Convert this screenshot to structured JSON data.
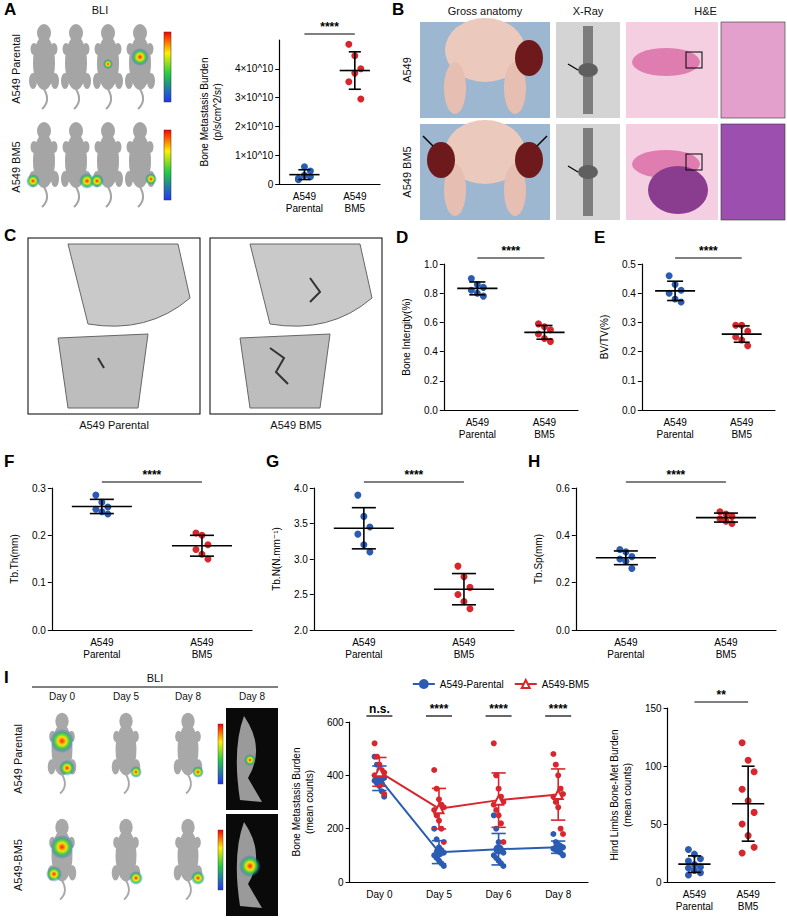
{
  "chart_data": [
    {
      "type": "scatter",
      "y_label": "Bone Metastasis Burden (p/s/cm^2/sr)",
      "categories": [
        "A549 Parental",
        "A549 BM5"
      ],
      "colors": [
        "#2b5cb4",
        "#d9262c"
      ],
      "values": [
        [
          1500000000,
          3000000000,
          4500000000,
          2000000000,
          6000000000,
          2500000000
        ],
        [
          48500000000,
          44500000000,
          40000000000,
          35500000000,
          38500000000,
          29500000000
        ]
      ],
      "mean": [
        3250000000,
        39400000000
      ],
      "sd": [
        1700000000,
        6500000000
      ],
      "ylim": [
        0,
        50000000000
      ],
      "yticks": [
        0,
        {
          "value": 10000000000,
          "label": "1×10^10"
        },
        {
          "value": 20000000000,
          "label": "2×10^10"
        },
        {
          "value": 30000000000,
          "label": "3×10^10"
        },
        {
          "value": 40000000000,
          "label": "4×10^10"
        }
      ],
      "grid": false,
      "annotations": [
        "****"
      ]
    },
    {
      "panel": "D",
      "type": "scatter",
      "y_label": "Bone Intergity(%)",
      "categories": [
        "A549 Parental",
        "A549 BM5"
      ],
      "colors": [
        "#2b5cb4",
        "#d9262c"
      ],
      "values": [
        [
          0.9,
          0.86,
          0.84,
          0.82,
          0.8,
          0.78
        ],
        [
          0.59,
          0.57,
          0.55,
          0.52,
          0.49,
          0.47
        ]
      ],
      "mean": [
        0.833,
        0.532
      ],
      "sd": [
        0.044,
        0.047
      ],
      "ylim": [
        0,
        1
      ],
      "yticks": [
        {
          "value": 0,
          "label": "0.0"
        },
        0.2,
        0.4,
        0.6,
        0.8,
        {
          "value": 1,
          "label": "1.0"
        }
      ],
      "grid": false,
      "annotations": [
        "****"
      ]
    },
    {
      "panel": "E",
      "type": "scatter",
      "y_label": "BV/TV(%)",
      "categories": [
        "A549 Parental",
        "A549 BM5"
      ],
      "colors": [
        "#2b5cb4",
        "#d9262c"
      ],
      "values": [
        [
          0.46,
          0.43,
          0.41,
          0.4,
          0.38,
          0.37
        ],
        [
          0.29,
          0.29,
          0.27,
          0.25,
          0.24,
          0.22
        ]
      ],
      "mean": [
        0.408,
        0.26
      ],
      "sd": [
        0.033,
        0.028
      ],
      "ylim": [
        0,
        0.5
      ],
      "yticks": [
        {
          "value": 0,
          "label": "0.0"
        },
        0.1,
        0.2,
        0.3,
        0.4,
        0.5
      ],
      "grid": false,
      "annotations": [
        "****"
      ]
    },
    {
      "panel": "F",
      "type": "scatter",
      "y_label": "Tb.Th(mm)",
      "categories": [
        "A549 Parental",
        "A549 BM5"
      ],
      "colors": [
        "#2b5cb4",
        "#d9262c"
      ],
      "values": [
        [
          0.285,
          0.27,
          0.26,
          0.255,
          0.25,
          0.245
        ],
        [
          0.205,
          0.2,
          0.18,
          0.17,
          0.16,
          0.15
        ]
      ],
      "mean": [
        0.261,
        0.178
      ],
      "sd": [
        0.015,
        0.022
      ],
      "ylim": [
        0,
        0.3
      ],
      "yticks": [
        {
          "value": 0,
          "label": "0.0"
        },
        0.1,
        0.2,
        0.3
      ],
      "grid": false,
      "annotations": [
        "****"
      ]
    },
    {
      "panel": "G",
      "type": "scatter",
      "y_label": "Tb.N(N.mm⁻¹)",
      "categories": [
        "A549 Parental",
        "A549 BM5"
      ],
      "colors": [
        "#2b5cb4",
        "#d9262c"
      ],
      "values": [
        [
          3.9,
          3.6,
          3.45,
          3.35,
          3.2,
          3.1
        ],
        [
          2.9,
          2.75,
          2.6,
          2.5,
          2.4,
          2.3
        ]
      ],
      "mean": [
        3.433,
        2.575
      ],
      "sd": [
        0.29,
        0.22
      ],
      "ylim": [
        2,
        4
      ],
      "yticks": [
        {
          "value": 2,
          "label": "2.0"
        },
        2.5,
        {
          "value": 3,
          "label": "3.0"
        },
        3.5,
        {
          "value": 4,
          "label": "4.0"
        }
      ],
      "grid": false,
      "annotations": [
        "****"
      ]
    },
    {
      "panel": "H",
      "type": "scatter",
      "y_label": "Tb.Sp(mm)",
      "categories": [
        "A549 Parental",
        "A549 BM5"
      ],
      "colors": [
        "#2b5cb4",
        "#d9262c"
      ],
      "values": [
        [
          0.34,
          0.33,
          0.31,
          0.3,
          0.29,
          0.26
        ],
        [
          0.5,
          0.49,
          0.48,
          0.47,
          0.46,
          0.45
        ]
      ],
      "mean": [
        0.305,
        0.475
      ],
      "sd": [
        0.029,
        0.019
      ],
      "ylim": [
        0,
        0.6
      ],
      "yticks": [
        {
          "value": 0,
          "label": "0.0"
        },
        0.2,
        0.4,
        0.6
      ],
      "grid": false,
      "annotations": [
        "****"
      ]
    },
    {
      "type": "line",
      "y_label": "Bone Metastasis Burden (mean counts)",
      "categories": [
        "Day 0",
        "Day 5",
        "Day 6",
        "Day 8"
      ],
      "series": [
        {
          "name": "A549-Parental",
          "color": "#2b5cb4",
          "marker": "circle",
          "values": [
            389,
            112,
            123,
            130.5
          ],
          "sd": [
            46,
            43,
            59,
            23
          ],
          "points": [
            [
              470,
              440,
              420,
              400,
              390,
              380,
              370,
              360,
              340,
              320
            ],
            [
              200,
              160,
              130,
              120,
              110,
              100,
              90,
              80,
              70,
              60
            ],
            [
              250,
              200,
              150,
              120,
              110,
              100,
              90,
              80,
              70,
              60
            ],
            [
              180,
              150,
              140,
              135,
              130,
              125,
              120,
              115,
              110,
              100
            ]
          ]
        },
        {
          "name": "A549-BM5",
          "color": "#d9262c",
          "marker": "triangle",
          "values": [
            413,
            275,
            307,
            328
          ],
          "sd": [
            54,
            76,
            102,
            96
          ],
          "points": [
            [
              520,
              470,
              440,
              420,
              410,
              400,
              390,
              380,
              370,
              330
            ],
            [
              420,
              350,
              310,
              290,
              280,
              270,
              250,
              230,
              200,
              150
            ],
            [
              520,
              400,
              350,
              320,
              300,
              290,
              270,
              250,
              220,
              150
            ],
            [
              480,
              440,
              400,
              350,
              330,
              320,
              300,
              280,
              200,
              180
            ]
          ]
        }
      ],
      "ylim": [
        0,
        600
      ],
      "yticks": [
        0,
        200,
        400,
        600
      ],
      "grid": false,
      "legend": "top-right",
      "annotations": [
        "n.s.",
        "****",
        "****",
        "****"
      ]
    },
    {
      "type": "scatter",
      "y_label": "Hind Limbs Bone-Met Burden (mean counts)",
      "categories": [
        "A549 Parental",
        "A549 BM5"
      ],
      "colors": [
        "#2b5cb4",
        "#d9262c"
      ],
      "values": [
        [
          28,
          24,
          20,
          18,
          15,
          13,
          12,
          10,
          8,
          6
        ],
        [
          120,
          105,
          95,
          80,
          70,
          60,
          50,
          40,
          30,
          25
        ]
      ],
      "mean": [
        15.4,
        67.5
      ],
      "sd": [
        7.1,
        32.3
      ],
      "ylim": [
        0,
        150
      ],
      "yticks": [
        0,
        50,
        100,
        150
      ],
      "grid": false,
      "annotations": [
        "**"
      ]
    }
  ],
  "images": [
    {
      "panel": "A",
      "title": "BLI",
      "rows": [
        "A549 Parental",
        "A549 BM5"
      ]
    },
    {
      "panel": "B",
      "columns": [
        "Gross anatomy",
        "X-Ray",
        "H&E"
      ],
      "rows": [
        "A549",
        "A549 BM5"
      ]
    },
    {
      "panel": "C",
      "captions": [
        "A549 Parental",
        "A549 BM5"
      ]
    },
    {
      "panel": "I",
      "title": "BLI",
      "columns": [
        "Day 0",
        "Day 5",
        "Day 8",
        "Day 8"
      ],
      "rows": [
        "A549 Parental",
        "A549-BM5"
      ]
    }
  ]
}
